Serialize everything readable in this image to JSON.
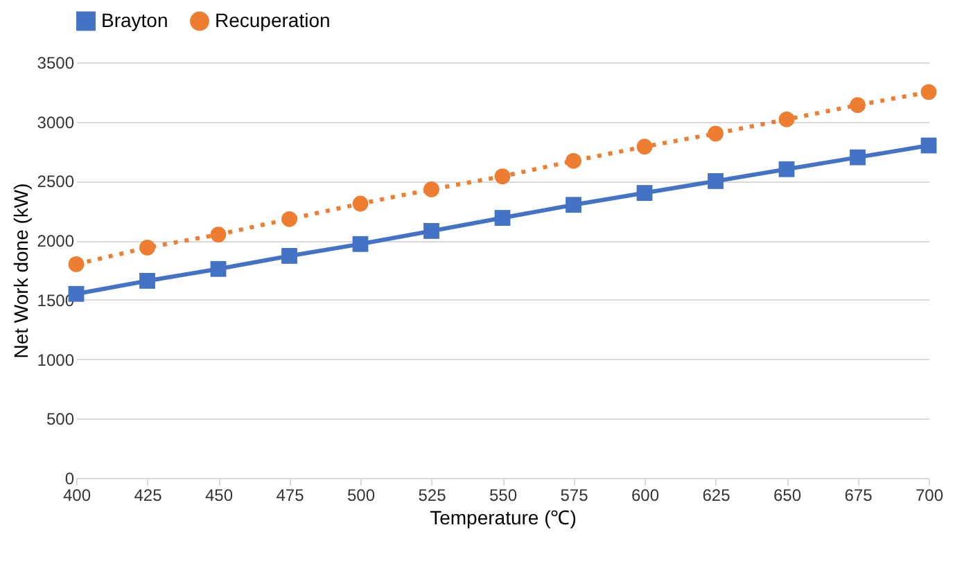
{
  "chart_data": {
    "type": "line",
    "xlabel": "Temperature (℃)",
    "ylabel": "Net Work done (kW)",
    "x": [
      400,
      425,
      450,
      475,
      500,
      525,
      550,
      575,
      600,
      625,
      650,
      675,
      700
    ],
    "series": [
      {
        "name": "Brayton",
        "color": "#4472c4",
        "marker": "square",
        "line_style": "solid",
        "values": [
          1550,
          1660,
          1760,
          1870,
          1970,
          2080,
          2190,
          2300,
          2400,
          2500,
          2600,
          2700,
          2800
        ]
      },
      {
        "name": "Recuperation",
        "color": "#ed7d31",
        "marker": "circle",
        "line_style": "dotted",
        "values": [
          1800,
          1940,
          2050,
          2180,
          2310,
          2430,
          2540,
          2670,
          2790,
          2900,
          3020,
          3140,
          3250
        ]
      }
    ],
    "xlim": [
      400,
      700
    ],
    "xticks": [
      400,
      425,
      450,
      475,
      500,
      525,
      550,
      575,
      600,
      625,
      650,
      675,
      700
    ],
    "ylim": [
      0,
      3500
    ],
    "yticks": [
      0,
      500,
      1000,
      1500,
      2000,
      2500,
      3000,
      3500
    ],
    "grid": "y",
    "legend": "top"
  }
}
